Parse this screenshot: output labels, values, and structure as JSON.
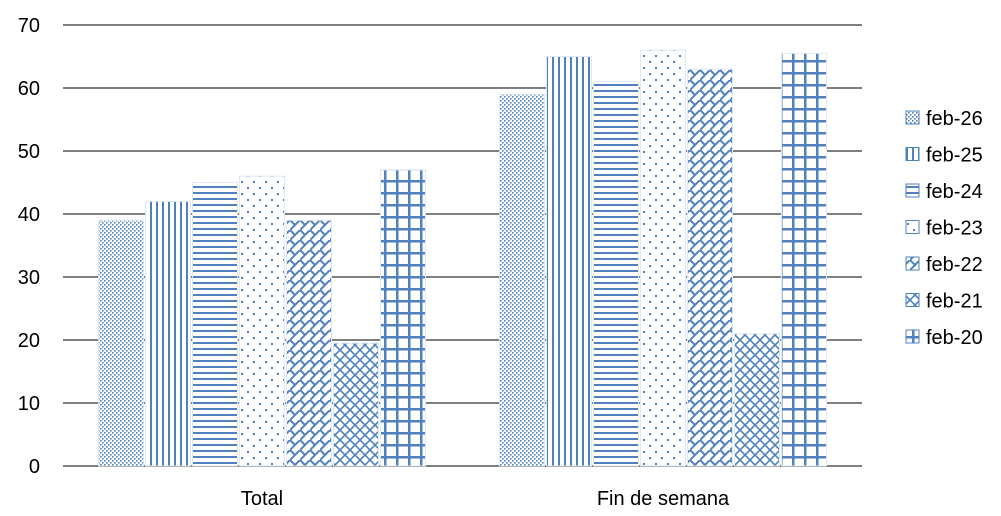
{
  "colors": {
    "bar_stroke": "#4F81BD",
    "pattern": "#4F81BD",
    "gridline": "#7F7F7F",
    "axis_text": "#000000"
  },
  "chart_data": {
    "type": "bar",
    "title": "",
    "xlabel": "",
    "ylabel": "",
    "ylim": [
      0,
      70
    ],
    "yticks": [
      "0",
      "10",
      "20",
      "30",
      "40",
      "50",
      "60",
      "70"
    ],
    "grid": true,
    "legend_position": "right",
    "categories": [
      "Total",
      "Fin de semana"
    ],
    "series": [
      {
        "name": "feb-26",
        "pattern": "dots-dense",
        "values": [
          39,
          59
        ]
      },
      {
        "name": "feb-25",
        "pattern": "vertical-lines",
        "values": [
          42,
          65
        ]
      },
      {
        "name": "feb-24",
        "pattern": "horizontal-lines",
        "values": [
          45,
          61
        ]
      },
      {
        "name": "feb-23",
        "pattern": "dots-sparse",
        "values": [
          46,
          66
        ]
      },
      {
        "name": "feb-22",
        "pattern": "diagonal-weave",
        "values": [
          39,
          63
        ]
      },
      {
        "name": "feb-21",
        "pattern": "diagonal-cross",
        "values": [
          19.5,
          21
        ]
      },
      {
        "name": "feb-20",
        "pattern": "grid",
        "values": [
          47,
          65.5
        ]
      }
    ]
  }
}
